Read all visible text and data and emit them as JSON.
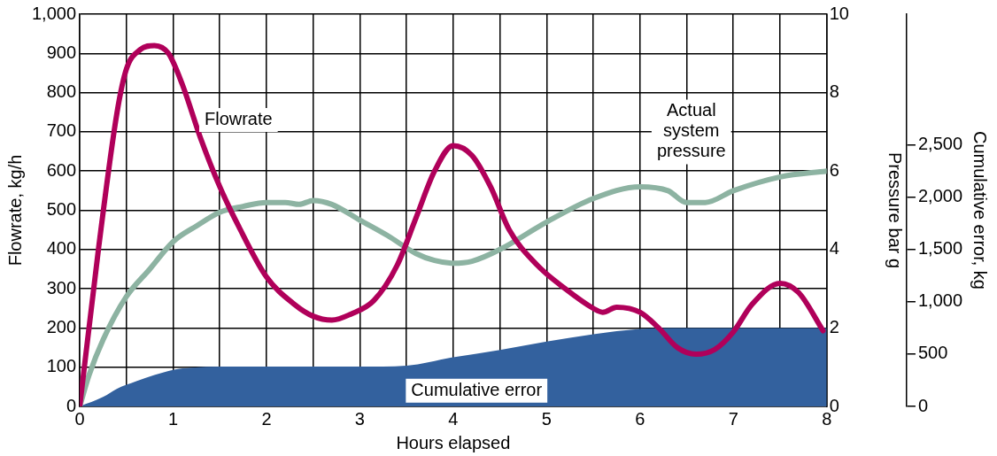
{
  "chart_data": {
    "type": "line",
    "xlabel": "Hours elapsed",
    "ylabel": "Flowrate, kg/h",
    "y2label": "Pressure bar g",
    "y3label": "Cumulative error, kg",
    "grid": true,
    "xlim": [
      0,
      8
    ],
    "xticks": [
      0,
      {
        "value": 0.5,
        "label": null
      },
      1,
      {
        "value": 1.5,
        "label": null
      },
      2,
      {
        "value": 2.5,
        "label": null
      },
      3,
      {
        "value": 3.5,
        "label": null
      },
      4,
      {
        "value": 4.5,
        "label": null
      },
      5,
      {
        "value": 5.5,
        "label": null
      },
      6,
      {
        "value": 6.5,
        "label": null
      },
      7,
      {
        "value": 7.5,
        "label": null
      },
      8
    ],
    "ylim": [
      0,
      1000
    ],
    "yticks": [
      0,
      100,
      200,
      300,
      400,
      500,
      600,
      700,
      800,
      900,
      {
        "value": 1000,
        "label": "1,000"
      }
    ],
    "y2lim": [
      0,
      10
    ],
    "y2ticks": [
      0,
      2,
      4,
      6,
      8,
      10
    ],
    "y3lim": [
      0,
      3750
    ],
    "y3ticks": [
      0,
      500,
      {
        "value": 1000,
        "label": "1,000"
      },
      {
        "value": 1500,
        "label": "1,500"
      },
      {
        "value": 2000,
        "label": "2,000"
      },
      {
        "value": 2500,
        "label": "2,500"
      }
    ],
    "series": [
      {
        "name": "Flowrate",
        "color": "#b0005a",
        "x": [
          0,
          0.2,
          0.4,
          0.5,
          0.65,
          0.8,
          0.95,
          1.1,
          1.3,
          1.5,
          1.7,
          2.0,
          2.3,
          2.5,
          2.7,
          2.9,
          3.15,
          3.4,
          3.6,
          3.8,
          4.0,
          4.2,
          4.4,
          4.6,
          4.9,
          5.2,
          5.5,
          5.6,
          5.75,
          6.0,
          6.2,
          6.4,
          6.6,
          6.8,
          7.0,
          7.2,
          7.5,
          7.7,
          7.96
        ],
        "values": [
          0,
          400,
          750,
          860,
          910,
          920,
          900,
          820,
          680,
          560,
          460,
          330,
          260,
          230,
          220,
          235,
          270,
          360,
          480,
          600,
          665,
          640,
          560,
          450,
          360,
          300,
          250,
          240,
          253,
          240,
          200,
          150,
          133,
          145,
          190,
          260,
          314,
          290,
          193
        ]
      },
      {
        "name": "Actual system pressure",
        "axis": "y2",
        "color": "#8db3a2",
        "x": [
          0,
          0.1,
          0.25,
          0.5,
          0.75,
          1,
          1.25,
          1.5,
          1.75,
          2,
          2.2,
          2.35,
          2.5,
          2.7,
          3,
          3.3,
          3.6,
          3.8,
          4.0,
          4.2,
          4.5,
          5,
          5.5,
          6,
          6.3,
          6.5,
          6.7,
          7,
          7.5,
          8
        ],
        "values": [
          0,
          0.8,
          1.7,
          2.8,
          3.5,
          4.2,
          4.6,
          4.95,
          5.1,
          5.2,
          5.2,
          5.15,
          5.25,
          5.15,
          4.75,
          4.35,
          3.9,
          3.72,
          3.65,
          3.7,
          4.0,
          4.7,
          5.3,
          5.6,
          5.5,
          5.2,
          5.2,
          5.5,
          5.85,
          6.0
        ]
      },
      {
        "name": "Cumulative error",
        "type": "area",
        "axis": "y3",
        "color": "#33619e",
        "x": [
          0,
          0.25,
          0.4,
          0.6,
          0.8,
          1.0,
          1.2,
          1.5,
          3.0,
          3.5,
          4,
          4.5,
          5,
          5.5,
          6,
          6.3,
          8
        ],
        "values": [
          0,
          90,
          170,
          240,
          300,
          350,
          370,
          380,
          380,
          390,
          470,
          540,
          620,
          690,
          740,
          750,
          750
        ]
      }
    ]
  }
}
